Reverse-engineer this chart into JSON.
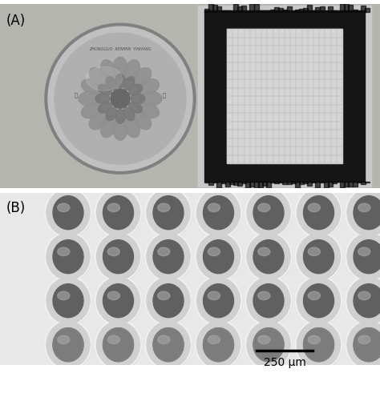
{
  "fig_width": 4.74,
  "fig_height": 5.01,
  "dpi": 100,
  "panel_A_label": "(A)",
  "panel_B_label": "(B)",
  "scale_bar_label": "250 μm",
  "bg_color": "#ffffff",
  "panel_A_bg": "#b8b8b0",
  "panel_B_bg": "#e8e8e8",
  "label_fontsize": 12,
  "scale_fontsize": 10,
  "well_rows": 4,
  "well_cols": 7
}
